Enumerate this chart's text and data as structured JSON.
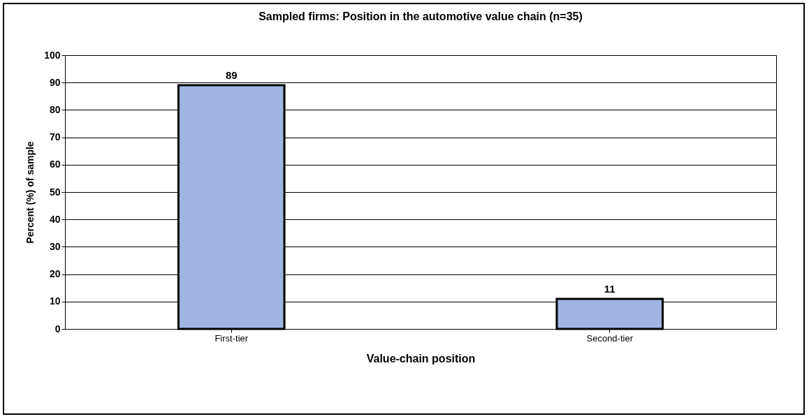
{
  "chart_data": {
    "type": "bar",
    "title": "Sampled firms: Position in the automotive value chain (n=35)",
    "xlabel": "Value-chain position",
    "ylabel": "Percent (%) of sample",
    "categories": [
      "First-tier",
      "Second-tier"
    ],
    "values": [
      89,
      11
    ],
    "color": "#9fb4e0",
    "ylim": [
      0,
      100
    ],
    "yticks": [
      0,
      10,
      20,
      30,
      40,
      50,
      60,
      70,
      80,
      90,
      100
    ],
    "grid": "y",
    "data_labels": true
  }
}
